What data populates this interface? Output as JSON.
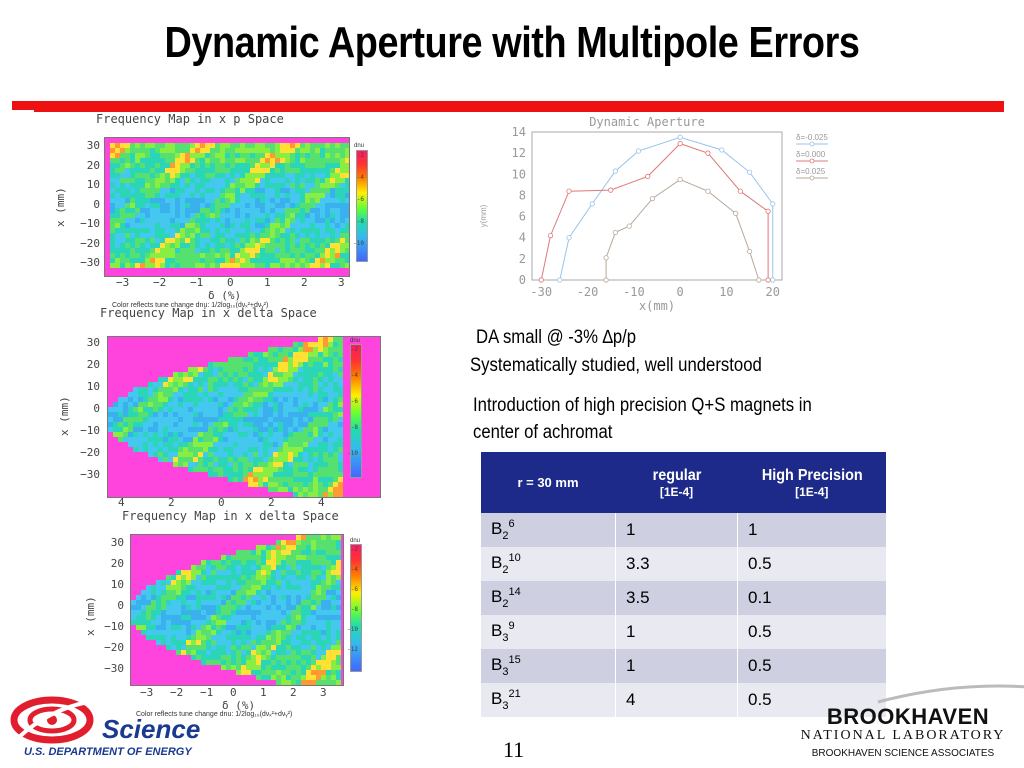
{
  "slide": {
    "title": "Dynamic Aperture with Multipole Errors",
    "page_number": "11"
  },
  "plots": {
    "fmap1": {
      "title": "Frequency Map in x p Space",
      "ylabel": "x (mm)",
      "yticks": [
        "30",
        "20",
        "10",
        "0",
        "−10",
        "−20",
        "−30"
      ],
      "xticks": [
        "−3",
        "−2",
        "−1",
        "0",
        "1",
        "2",
        "3"
      ],
      "xlabel": "δ (%)",
      "caption": "Color reflects tune change dnu: 1/2log₁₀(dνₓ²+dνᵧ²)",
      "cbar_title": "dnu",
      "cbar_ticks": [
        "-2",
        "-4",
        "-6",
        "-8",
        "-10"
      ]
    },
    "fmap2": {
      "title": "Frequency Map in x delta Space",
      "ylabel": "x (mm)",
      "yticks": [
        "30",
        "20",
        "10",
        "0",
        "−10",
        "−20",
        "−30"
      ],
      "xticks": [
        "4",
        "2",
        "0",
        "2",
        "4"
      ],
      "cbar_title": "dnu",
      "cbar_ticks": [
        "-2",
        "-4",
        "-6",
        "-8",
        "-10"
      ]
    },
    "fmap3": {
      "title": "Frequency Map in x delta Space",
      "ylabel": "x (mm)",
      "yticks": [
        "30",
        "20",
        "10",
        "0",
        "−10",
        "−20",
        "−30"
      ],
      "xticks": [
        "−3",
        "−2",
        "−1",
        "0",
        "1",
        "2",
        "3"
      ],
      "xlabel": "δ (%)",
      "caption": "Color reflects tune change dnu: 1/2log₁₀(dνₓ²+dνᵧ²)",
      "cbar_title": "dnu",
      "cbar_ticks": [
        "-2",
        "-4",
        "-6",
        "-8",
        "-10",
        "-12"
      ]
    }
  },
  "chart_data": {
    "type": "line",
    "title": "Dynamic Aperture",
    "xlabel": "x(mm)",
    "ylabel": "y(mm)",
    "xlim": [
      -32,
      22
    ],
    "ylim": [
      0,
      14
    ],
    "xticks": [
      -30,
      -20,
      -10,
      0,
      10,
      20
    ],
    "yticks": [
      0,
      2,
      4,
      6,
      8,
      10,
      12,
      14
    ],
    "legend_position": "top-right",
    "series": [
      {
        "name": "δ=-0.025",
        "color": "#99c4e8",
        "x": [
          -26,
          -24,
          -19,
          -14,
          -9,
          0,
          9,
          15,
          20,
          20
        ],
        "y": [
          0,
          4,
          7.2,
          10.3,
          12.2,
          13.5,
          12.3,
          10.2,
          7.2,
          0
        ]
      },
      {
        "name": "δ=0.000",
        "color": "#e07878",
        "x": [
          -30,
          -28,
          -24,
          -15,
          -7,
          0,
          6,
          13,
          19,
          19
        ],
        "y": [
          0,
          4.2,
          8.4,
          8.5,
          9.8,
          12.9,
          12.0,
          8.4,
          6.5,
          0
        ]
      },
      {
        "name": "δ=0.025",
        "color": "#b8a898",
        "x": [
          -16,
          -16,
          -14,
          -11,
          -6,
          0,
          6,
          12,
          15,
          17
        ],
        "y": [
          0,
          2.1,
          4.5,
          5.1,
          7.7,
          9.5,
          8.4,
          6.3,
          2.7,
          0
        ]
      }
    ]
  },
  "notes": {
    "line1": "DA small @ -3% ∆p/p",
    "line2": "Systematically studied, well understood",
    "line3a": "Introduction of high precision Q+S magnets in",
    "line3b": "center of achromat"
  },
  "table": {
    "header": {
      "c1": "r = 30 mm",
      "c2": "regular",
      "c2_sub": "[1E-4]",
      "c3": "High Precision",
      "c3_sub": "[1E-4]"
    },
    "rows": [
      {
        "base": "B",
        "sub": "2",
        "sup": "6",
        "regular": "1",
        "precision": "1"
      },
      {
        "base": "B",
        "sub": "2",
        "sup": "10",
        "regular": "3.3",
        "precision": "0.5"
      },
      {
        "base": "B",
        "sub": "2",
        "sup": "14",
        "regular": "3.5",
        "precision": "0.1"
      },
      {
        "base": "B",
        "sub": "3",
        "sup": "9",
        "regular": "1",
        "precision": "0.5"
      },
      {
        "base": "B",
        "sub": "3",
        "sup": "15",
        "regular": "1",
        "precision": "0.5"
      },
      {
        "base": "B",
        "sub": "3",
        "sup": "21",
        "regular": "4",
        "precision": "0.5"
      }
    ]
  },
  "logos": {
    "science": "Science",
    "doe": "U.S. DEPARTMENT OF ENERGY",
    "bnl_main": "BROOKHAVEN",
    "bnl_sub": "NATIONAL LABORATORY",
    "bnl_assoc": "BROOKHAVEN SCIENCE ASSOCIATES"
  },
  "colors": {
    "title_bar": "#ee1111",
    "table_header": "#1e2a8a",
    "doe_blue": "#1a3a8f",
    "doe_red": "#e01e2e"
  }
}
